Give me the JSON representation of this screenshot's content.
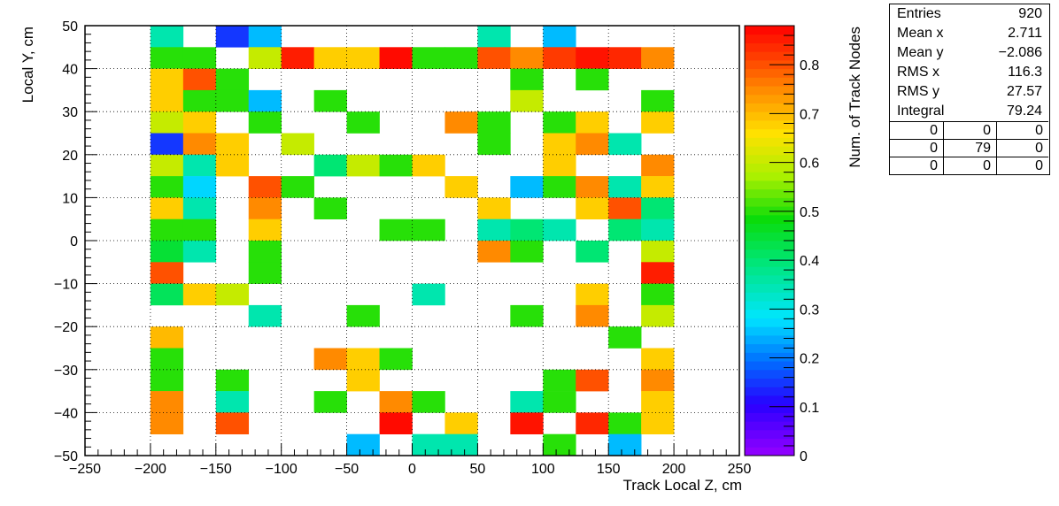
{
  "chart_data": {
    "type": "heatmap",
    "title": "",
    "xlabel": "Track Local Z, cm",
    "ylabel": "Local Y, cm",
    "zlabel": "Num. of Track Nodes",
    "xlim": [
      -250,
      250
    ],
    "ylim": [
      -50,
      50
    ],
    "zlim": [
      0,
      0.88
    ],
    "x_bin_width": 25,
    "y_bin_width": 5,
    "x_ticks": [
      "−250",
      "−200",
      "−150",
      "−100",
      "−50",
      "0",
      "50",
      "100",
      "150",
      "200",
      "250"
    ],
    "y_ticks": [
      "−50",
      "−40",
      "−30",
      "−20",
      "−10",
      "0",
      "10",
      "20",
      "30",
      "40",
      "50"
    ],
    "z_ticks": [
      "0",
      "0.1",
      "0.2",
      "0.3",
      "0.4",
      "0.5",
      "0.6",
      "0.7",
      "0.8"
    ],
    "grid": true,
    "cells": [
      [
        -200,
        45,
        0.35
      ],
      [
        -150,
        45,
        0.15
      ],
      [
        -125,
        45,
        0.25
      ],
      [
        50,
        45,
        0.35
      ],
      [
        100,
        45,
        0.25
      ],
      [
        -200,
        40,
        0.5
      ],
      [
        -175,
        40,
        0.5
      ],
      [
        -125,
        40,
        0.6
      ],
      [
        -100,
        40,
        0.85
      ],
      [
        -75,
        40,
        0.68
      ],
      [
        -50,
        40,
        0.68
      ],
      [
        -25,
        40,
        0.87
      ],
      [
        0,
        40,
        0.5
      ],
      [
        25,
        40,
        0.5
      ],
      [
        50,
        40,
        0.8
      ],
      [
        75,
        40,
        0.75
      ],
      [
        100,
        40,
        0.82
      ],
      [
        125,
        40,
        0.86
      ],
      [
        150,
        40,
        0.84
      ],
      [
        175,
        40,
        0.75
      ],
      [
        -200,
        35,
        0.68
      ],
      [
        -175,
        35,
        0.8
      ],
      [
        -150,
        35,
        0.5
      ],
      [
        75,
        35,
        0.5
      ],
      [
        125,
        35,
        0.5
      ],
      [
        -200,
        30,
        0.68
      ],
      [
        -175,
        30,
        0.5
      ],
      [
        -150,
        30,
        0.5
      ],
      [
        -125,
        30,
        0.25
      ],
      [
        -75,
        30,
        0.5
      ],
      [
        75,
        30,
        0.6
      ],
      [
        175,
        30,
        0.5
      ],
      [
        -200,
        25,
        0.6
      ],
      [
        -175,
        25,
        0.68
      ],
      [
        -125,
        25,
        0.5
      ],
      [
        -50,
        25,
        0.5
      ],
      [
        25,
        25,
        0.75
      ],
      [
        50,
        25,
        0.5
      ],
      [
        100,
        25,
        0.5
      ],
      [
        125,
        25,
        0.68
      ],
      [
        175,
        25,
        0.68
      ],
      [
        -200,
        20,
        0.15
      ],
      [
        -175,
        20,
        0.75
      ],
      [
        -150,
        20,
        0.68
      ],
      [
        -100,
        20,
        0.6
      ],
      [
        50,
        20,
        0.5
      ],
      [
        100,
        20,
        0.68
      ],
      [
        125,
        20,
        0.75
      ],
      [
        150,
        20,
        0.35
      ],
      [
        -200,
        15,
        0.6
      ],
      [
        -175,
        15,
        0.35
      ],
      [
        -150,
        15,
        0.68
      ],
      [
        -75,
        15,
        0.4
      ],
      [
        -50,
        15,
        0.6
      ],
      [
        -25,
        15,
        0.5
      ],
      [
        0,
        15,
        0.68
      ],
      [
        100,
        15,
        0.68
      ],
      [
        175,
        15,
        0.75
      ],
      [
        -200,
        10,
        0.5
      ],
      [
        -175,
        10,
        0.27
      ],
      [
        -125,
        10,
        0.8
      ],
      [
        -100,
        10,
        0.5
      ],
      [
        25,
        10,
        0.68
      ],
      [
        75,
        10,
        0.25
      ],
      [
        100,
        10,
        0.5
      ],
      [
        125,
        10,
        0.75
      ],
      [
        150,
        10,
        0.35
      ],
      [
        175,
        10,
        0.68
      ],
      [
        -200,
        5,
        0.68
      ],
      [
        -175,
        5,
        0.35
      ],
      [
        -125,
        5,
        0.75
      ],
      [
        -75,
        5,
        0.5
      ],
      [
        50,
        5,
        0.68
      ],
      [
        125,
        5,
        0.68
      ],
      [
        150,
        5,
        0.8
      ],
      [
        175,
        5,
        0.4
      ],
      [
        -200,
        0,
        0.5
      ],
      [
        -175,
        0,
        0.5
      ],
      [
        -125,
        0,
        0.68
      ],
      [
        -25,
        0,
        0.5
      ],
      [
        0,
        0,
        0.5
      ],
      [
        50,
        0,
        0.35
      ],
      [
        75,
        0,
        0.4
      ],
      [
        100,
        0,
        0.35
      ],
      [
        150,
        0,
        0.4
      ],
      [
        175,
        0,
        0.35
      ],
      [
        -200,
        -5,
        0.45
      ],
      [
        -175,
        -5,
        0.35
      ],
      [
        -125,
        -5,
        0.5
      ],
      [
        50,
        -5,
        0.75
      ],
      [
        75,
        -5,
        0.5
      ],
      [
        125,
        -5,
        0.4
      ],
      [
        175,
        -5,
        0.6
      ],
      [
        -200,
        -10,
        0.8
      ],
      [
        -125,
        -10,
        0.5
      ],
      [
        175,
        -10,
        0.85
      ],
      [
        -200,
        -15,
        0.42
      ],
      [
        -175,
        -15,
        0.68
      ],
      [
        -150,
        -15,
        0.6
      ],
      [
        0,
        -15,
        0.35
      ],
      [
        125,
        -15,
        0.68
      ],
      [
        175,
        -15,
        0.5
      ],
      [
        -125,
        -20,
        0.35
      ],
      [
        -50,
        -20,
        0.5
      ],
      [
        75,
        -20,
        0.5
      ],
      [
        125,
        -20,
        0.75
      ],
      [
        175,
        -20,
        0.6
      ],
      [
        -200,
        -25,
        0.7
      ],
      [
        150,
        -25,
        0.5
      ],
      [
        -200,
        -30,
        0.5
      ],
      [
        -75,
        -30,
        0.75
      ],
      [
        -50,
        -30,
        0.68
      ],
      [
        -25,
        -30,
        0.5
      ],
      [
        175,
        -30,
        0.68
      ],
      [
        -200,
        -35,
        0.5
      ],
      [
        -150,
        -35,
        0.5
      ],
      [
        -50,
        -35,
        0.68
      ],
      [
        100,
        -35,
        0.5
      ],
      [
        125,
        -35,
        0.8
      ],
      [
        175,
        -35,
        0.75
      ],
      [
        -200,
        -40,
        0.75
      ],
      [
        -150,
        -40,
        0.35
      ],
      [
        -75,
        -40,
        0.5
      ],
      [
        -25,
        -40,
        0.75
      ],
      [
        0,
        -40,
        0.5
      ],
      [
        75,
        -40,
        0.35
      ],
      [
        100,
        -40,
        0.5
      ],
      [
        175,
        -40,
        0.68
      ],
      [
        -200,
        -45,
        0.75
      ],
      [
        -150,
        -45,
        0.8
      ],
      [
        -25,
        -45,
        0.87
      ],
      [
        25,
        -45,
        0.68
      ],
      [
        75,
        -45,
        0.86
      ],
      [
        125,
        -45,
        0.84
      ],
      [
        150,
        -45,
        0.5
      ],
      [
        175,
        -45,
        0.68
      ],
      [
        -50,
        -50,
        0.25
      ],
      [
        0,
        -50,
        0.35
      ],
      [
        25,
        -50,
        0.35
      ],
      [
        100,
        -50,
        0.5
      ],
      [
        150,
        -50,
        0.25
      ]
    ]
  },
  "stats": {
    "rows": [
      {
        "label": "Entries",
        "value": "920"
      },
      {
        "label": "Mean x",
        "value": "2.711"
      },
      {
        "label": "Mean y",
        "value": "−2.086"
      },
      {
        "label": "RMS x",
        "value": "116.3"
      },
      {
        "label": "RMS y",
        "value": "27.57"
      },
      {
        "label": "Integral",
        "value": "79.24"
      }
    ],
    "grid": [
      "0",
      "0",
      "0",
      "0",
      "79",
      "0",
      "0",
      "0",
      "0"
    ]
  }
}
